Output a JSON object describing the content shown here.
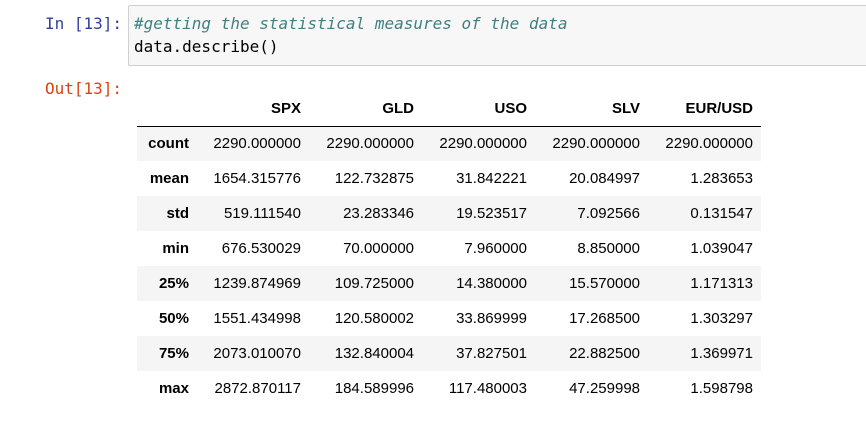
{
  "input_cell": {
    "prompt": "In [13]:",
    "comment": "#getting the statistical measures of the data",
    "code": "data.describe()"
  },
  "output_cell": {
    "prompt": "Out[13]:"
  },
  "table": {
    "columns": [
      "SPX",
      "GLD",
      "USO",
      "SLV",
      "EUR/USD"
    ],
    "rows": [
      {
        "index": "count",
        "values": [
          "2290.000000",
          "2290.000000",
          "2290.000000",
          "2290.000000",
          "2290.000000"
        ]
      },
      {
        "index": "mean",
        "values": [
          "1654.315776",
          "122.732875",
          "31.842221",
          "20.084997",
          "1.283653"
        ]
      },
      {
        "index": "std",
        "values": [
          "519.111540",
          "23.283346",
          "19.523517",
          "7.092566",
          "0.131547"
        ]
      },
      {
        "index": "min",
        "values": [
          "676.530029",
          "70.000000",
          "7.960000",
          "8.850000",
          "1.039047"
        ]
      },
      {
        "index": "25%",
        "values": [
          "1239.874969",
          "109.725000",
          "14.380000",
          "15.570000",
          "1.171313"
        ]
      },
      {
        "index": "50%",
        "values": [
          "1551.434998",
          "120.580002",
          "33.869999",
          "17.268500",
          "1.303297"
        ]
      },
      {
        "index": "75%",
        "values": [
          "2073.010070",
          "132.840004",
          "37.827501",
          "22.882500",
          "1.369971"
        ]
      },
      {
        "index": "max",
        "values": [
          "2872.870117",
          "184.589996",
          "117.480003",
          "47.259998",
          "1.598798"
        ]
      }
    ]
  },
  "colors": {
    "in_prompt": "#303f9f",
    "out_prompt": "#d84315",
    "comment": "#408080",
    "input_bg": "#f7f7f7",
    "row_stripe": "#f5f5f5"
  }
}
